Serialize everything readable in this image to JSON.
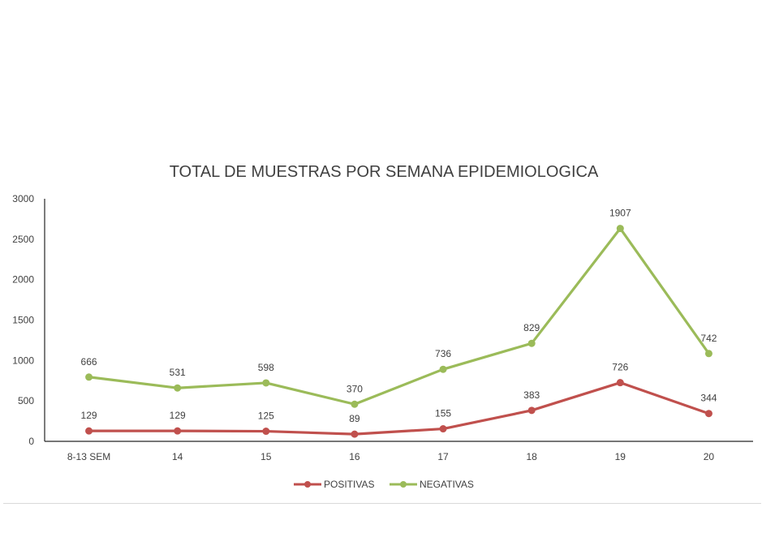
{
  "chart_data": {
    "type": "line",
    "title": "TOTAL DE MUESTRAS POR SEMANA EPIDEMIOLOGICA",
    "categories": [
      "8-13 SEM",
      "14",
      "15",
      "16",
      "17",
      "18",
      "19",
      "20"
    ],
    "ylim": [
      0,
      3000
    ],
    "yticks": [
      0,
      500,
      1000,
      1500,
      2000,
      2500,
      3000
    ],
    "grid": false,
    "legend": "bottom",
    "stacked": true,
    "series": [
      {
        "name": "POSITIVAS",
        "color": "#c0504d",
        "values": [
          129,
          129,
          125,
          89,
          155,
          383,
          726,
          344
        ],
        "labels": [
          "129",
          "129",
          "125",
          "89",
          "155",
          "383",
          "726",
          "344"
        ]
      },
      {
        "name": "NEGATIVAS",
        "color": "#9bbb59",
        "values": [
          666,
          531,
          598,
          370,
          736,
          829,
          1907,
          742
        ],
        "labels": [
          "666",
          "531",
          "598",
          "370",
          "736",
          "829",
          "1907",
          "742"
        ]
      }
    ]
  }
}
